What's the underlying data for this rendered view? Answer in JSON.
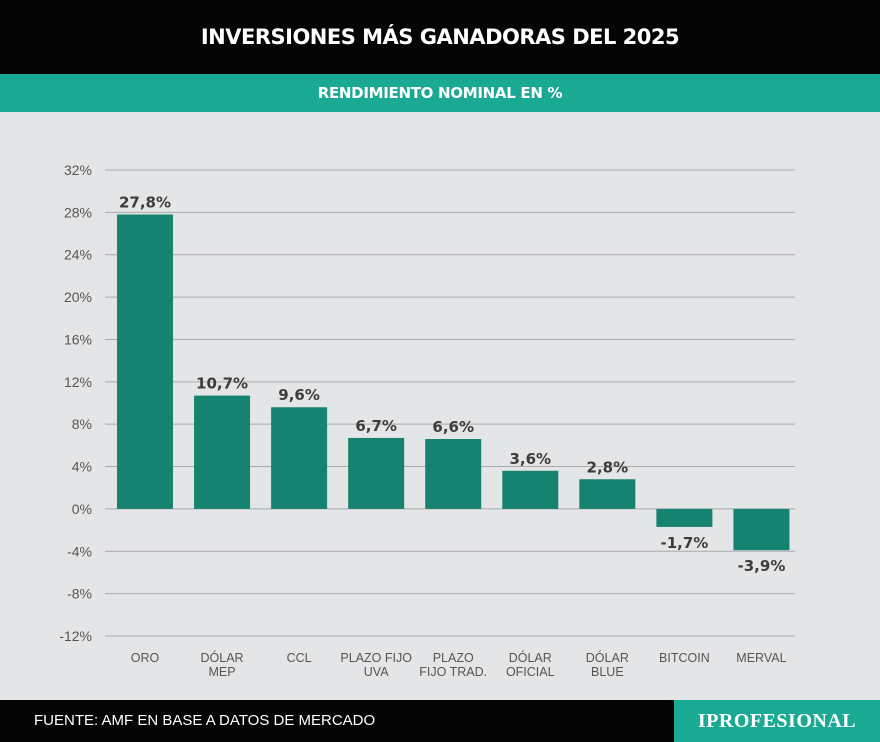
{
  "header": {
    "title": "INVERSIONES MÁS GANADORAS DEL 2025"
  },
  "subheader": {
    "title": "RENDIMIENTO NOMINAL EN %"
  },
  "footer": {
    "source": "FUENTE: AMF EN BASE A DATOS DE MERCADO",
    "brand": "IPROFESIONAL"
  },
  "colors": {
    "bar": "#168270",
    "accent": "#1aa992",
    "background": "#e4e5e7",
    "grid": "#a9aaac",
    "text": "#3c3c3c"
  },
  "chart_data": {
    "type": "bar",
    "title": "RENDIMIENTO NOMINAL EN %",
    "categories": [
      [
        "ORO"
      ],
      [
        "DÓLAR",
        "MEP"
      ],
      [
        "CCL"
      ],
      [
        "PLAZO  FIJO",
        "UVA"
      ],
      [
        "PLAZO",
        "FIJO TRAD."
      ],
      [
        "DÓLAR",
        "OFICIAL"
      ],
      [
        "DÓLAR",
        "BLUE"
      ],
      [
        "BITCOIN"
      ],
      [
        "MERVAL"
      ]
    ],
    "values": [
      27.8,
      10.7,
      9.6,
      6.7,
      6.6,
      3.6,
      2.8,
      -1.7,
      -3.9
    ],
    "value_labels": [
      "27,8%",
      "10,7%",
      "9,6%",
      "6,7%",
      "6,6%",
      "3,6%",
      "2,8%",
      "-1,7%",
      "-3,9%"
    ],
    "y_ticks": [
      32,
      28,
      24,
      20,
      16,
      12,
      8,
      4,
      0,
      -4,
      -8,
      -12
    ],
    "y_tick_labels": [
      "32%",
      "28%",
      "24%",
      "20%",
      "16%",
      "12%",
      "8%",
      "4%",
      "0%",
      "-4%",
      "-8%",
      "-12%"
    ],
    "ylim": [
      -12,
      32
    ],
    "xlabel": "",
    "ylabel": "",
    "grid": true
  }
}
